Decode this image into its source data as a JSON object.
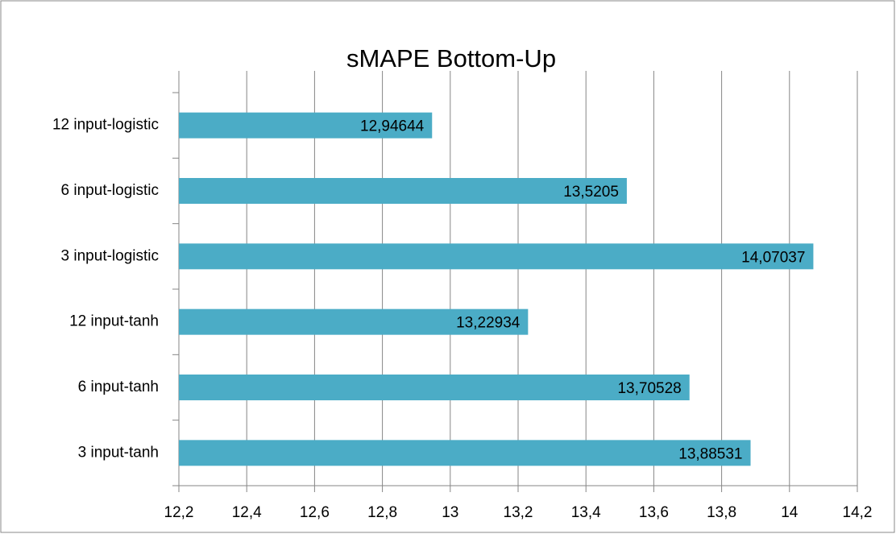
{
  "chart_data": {
    "type": "bar",
    "orientation": "horizontal",
    "title": "sMAPE Bottom-Up",
    "categories": [
      "12 input-logistic",
      "6 input-logistic",
      "3 input-logistic",
      "12 input-tanh",
      "6 input-tanh",
      "3 input-tanh"
    ],
    "values": [
      12.94644,
      13.5205,
      14.07037,
      13.22934,
      13.70528,
      13.88531
    ],
    "value_labels": [
      "12,94644",
      "13,5205",
      "14,07037",
      "13,22934",
      "13,70528",
      "13,88531"
    ],
    "color": "#4bacc6",
    "xlim": [
      12.2,
      14.2
    ],
    "xticks": [
      {
        "value": 12.2,
        "label": "12,2"
      },
      {
        "value": 12.4,
        "label": "12,4"
      },
      {
        "value": 12.6,
        "label": "12,6"
      },
      {
        "value": 12.8,
        "label": "12,8"
      },
      13,
      {
        "value": 13.2,
        "label": "13,2"
      },
      {
        "value": 13.4,
        "label": "13,4"
      },
      {
        "value": 13.6,
        "label": "13,6"
      },
      {
        "value": 13.8,
        "label": "13,8"
      },
      14,
      {
        "value": 14.2,
        "label": "14,2"
      }
    ],
    "grid": true
  }
}
